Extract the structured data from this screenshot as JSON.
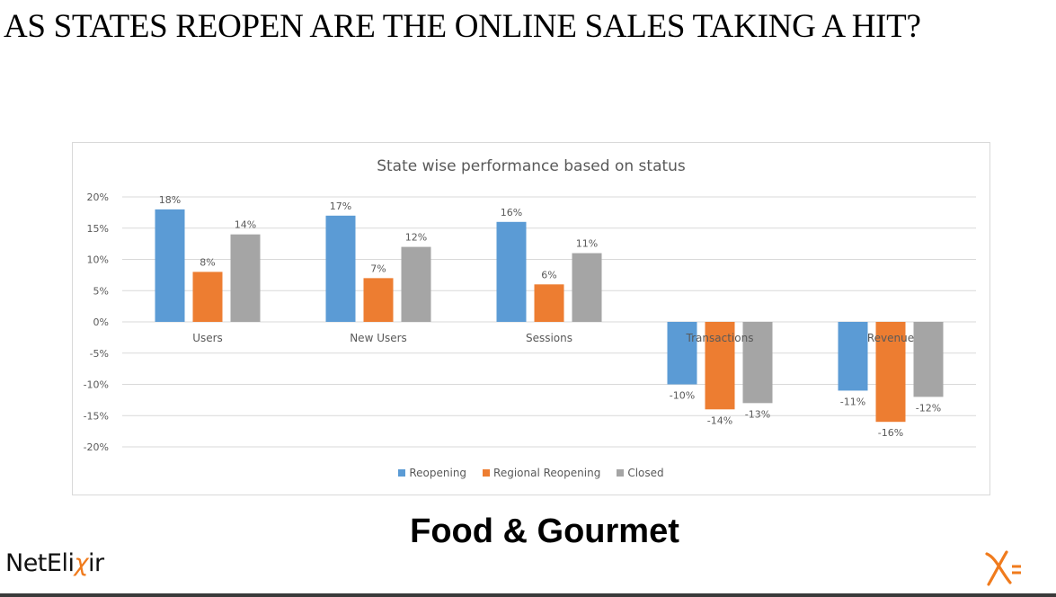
{
  "slide": {
    "title": "AS STATES REOPEN ARE THE ONLINE SALES TAKING A HIT?",
    "subtitle": "Food & Gourmet",
    "logo_text_before": "NetEli",
    "logo_text_x": "χ",
    "logo_text_after": "ir",
    "logo_mark": "X="
  },
  "colors": {
    "reopening": "#5b9bd5",
    "regional_reopening": "#ed7d31",
    "closed": "#a5a5a5",
    "grid": "#d9d9d9",
    "text": "#595959",
    "brand_orange": "#f07b1d"
  },
  "chart_data": {
    "type": "bar",
    "title": "State wise performance based on status",
    "categories": [
      "Users",
      "New Users",
      "Sessions",
      "Transactions",
      "Revenue"
    ],
    "series": [
      {
        "name": "Reopening",
        "values": [
          18,
          17,
          16,
          -10,
          -11
        ],
        "labels": [
          "18%",
          "17%",
          "16%",
          "-10%",
          "-11%"
        ]
      },
      {
        "name": "Regional Reopening",
        "values": [
          8,
          7,
          6,
          -14,
          -16
        ],
        "labels": [
          "8%",
          "7%",
          "6%",
          "-14%",
          "-16%"
        ]
      },
      {
        "name": "Closed",
        "values": [
          14,
          12,
          11,
          -13,
          -12
        ],
        "labels": [
          "14%",
          "12%",
          "11%",
          "-13%",
          "-12%"
        ]
      }
    ],
    "yticks": [
      "20%",
      "15%",
      "10%",
      "5%",
      "0%",
      "-5%",
      "-10%",
      "-15%",
      "-20%"
    ],
    "ylim": [
      -20,
      20
    ],
    "grid": true,
    "legend_position": "bottom"
  }
}
